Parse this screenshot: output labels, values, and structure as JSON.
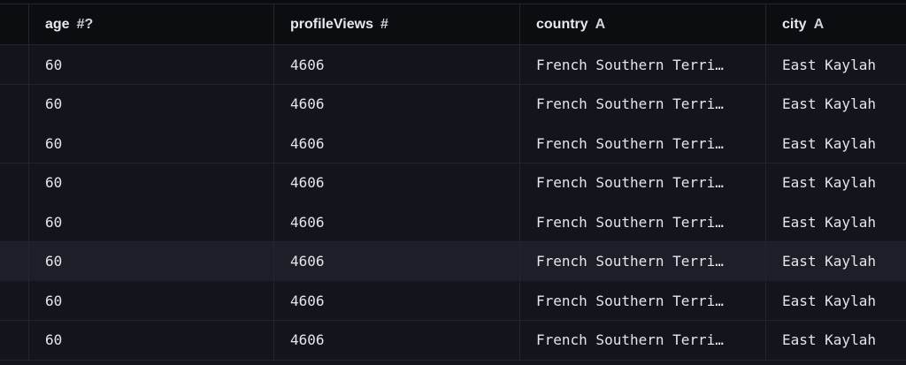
{
  "columns": [
    {
      "name": "age",
      "type": "#?"
    },
    {
      "name": "profileViews",
      "type": "#"
    },
    {
      "name": "country",
      "type": "A"
    },
    {
      "name": "city",
      "type": "A"
    }
  ],
  "rows": [
    [
      "60",
      "4606",
      "French Southern Terri…",
      "East Kaylah"
    ],
    [
      "60",
      "4606",
      "French Southern Terri…",
      "East Kaylah"
    ],
    [
      "60",
      "4606",
      "French Southern Terri…",
      "East Kaylah"
    ],
    [
      "60",
      "4606",
      "French Southern Terri…",
      "East Kaylah"
    ],
    [
      "60",
      "4606",
      "French Southern Terri…",
      "East Kaylah"
    ],
    [
      "60",
      "4606",
      "French Southern Terri…",
      "East Kaylah"
    ],
    [
      "60",
      "4606",
      "French Southern Terri…",
      "East Kaylah"
    ],
    [
      "60",
      "4606",
      "French Southern Terri…",
      "East Kaylah"
    ]
  ],
  "highlighted_row": 5
}
